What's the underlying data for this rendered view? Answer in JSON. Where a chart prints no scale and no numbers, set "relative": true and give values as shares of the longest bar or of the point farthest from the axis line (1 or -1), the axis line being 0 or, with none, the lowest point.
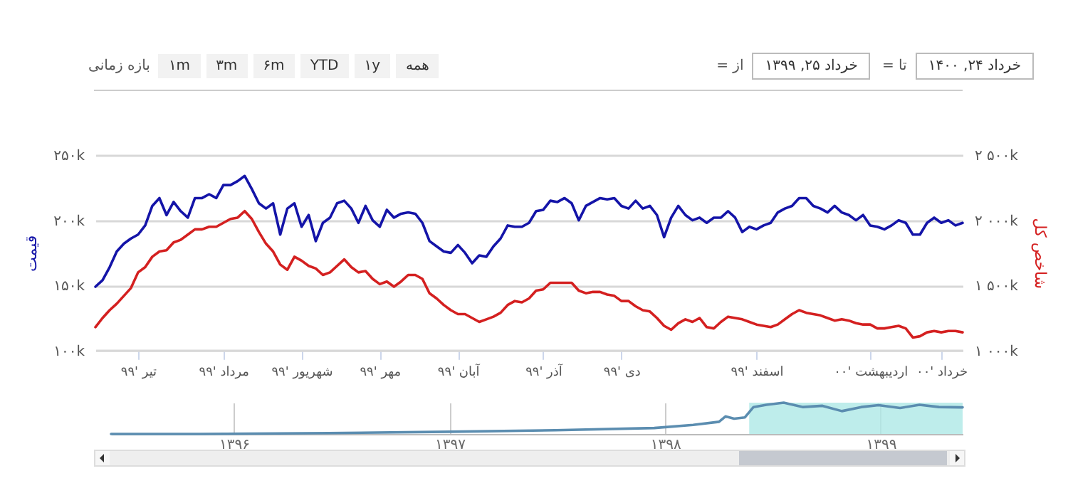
{
  "chart_data": [
    {
      "type": "line",
      "annotations": [
        "بازه زمانی",
        "۱m",
        "۳m",
        "۶m",
        "YTD",
        "۱y",
        "همه",
        "از =",
        "خرداد ۲۵, ۱۳۹۹",
        "تا =",
        "خرداد ۲۴, ۱۴۰۰"
      ],
      "ylabel": "قیمت",
      "y2label": "شاخص کل",
      "categories": [
        null,
        null,
        null,
        null,
        null,
        null,
        "تیر '۹۹",
        null,
        null,
        null,
        null,
        null,
        null,
        null,
        null,
        null,
        null,
        null,
        "مرداد '۹۹",
        null,
        null,
        null,
        null,
        null,
        null,
        null,
        null,
        null,
        null,
        "شهریور '۹۹",
        null,
        null,
        null,
        null,
        null,
        null,
        null,
        null,
        null,
        null,
        "مهر '۹۹",
        null,
        null,
        null,
        null,
        null,
        null,
        null,
        null,
        null,
        null,
        "آبان '۹۹",
        null,
        null,
        null,
        null,
        null,
        null,
        null,
        null,
        null,
        null,
        null,
        "آذر '۹۹",
        null,
        null,
        null,
        null,
        null,
        null,
        null,
        null,
        null,
        null,
        "دی '۹۹",
        null,
        null,
        null,
        null,
        null,
        null,
        null,
        null,
        null,
        null,
        null,
        null,
        null,
        null,
        null,
        null,
        null,
        null,
        "اسفند '۹۹",
        null,
        null,
        null,
        null,
        null,
        null,
        null,
        null,
        null,
        null,
        null,
        null,
        null,
        null,
        null,
        "اردیبهشت '۰۰",
        null,
        null,
        null,
        null,
        null,
        null,
        null,
        null,
        null,
        "خرداد '۰۰",
        null,
        null,
        null
      ],
      "ylim": [
        100,
        250
      ],
      "yticks": [
        {
          "value": 100,
          "label": "۱۰۰k"
        },
        {
          "value": 150,
          "label": "۱۵۰k"
        },
        {
          "value": 200,
          "label": "۲۰۰k"
        },
        {
          "value": 250,
          "label": "۲۵۰k"
        }
      ],
      "y2lim": [
        1000,
        2500
      ],
      "y2ticks": [
        {
          "value": 1000,
          "label": "۱ ۰۰۰k"
        },
        {
          "value": 1500,
          "label": "۱ ۵۰۰k"
        },
        {
          "value": 2000,
          "label": "۲ ۰۰۰k"
        },
        {
          "value": 2500,
          "label": "۲ ۵۰۰k"
        }
      ],
      "grid": "y",
      "series": [
        {
          "color": "#1414a8",
          "values": [
            149,
            154,
            164,
            176,
            182,
            186,
            189,
            196,
            211,
            217,
            204,
            214,
            207,
            202,
            217,
            217,
            220,
            217,
            227,
            227,
            230,
            234,
            224,
            213,
            209,
            213,
            189,
            209,
            213,
            195,
            204,
            184,
            198,
            202,
            213,
            215,
            209,
            198,
            211,
            200,
            195,
            208,
            202,
            205,
            206,
            205,
            198,
            184,
            180,
            176,
            175,
            181,
            175,
            167,
            173,
            172,
            180,
            186,
            196,
            195,
            195,
            198,
            207,
            208,
            215,
            214,
            217,
            213,
            200,
            211,
            214,
            217,
            216,
            217,
            211,
            209,
            215,
            209,
            211,
            204,
            187,
            202,
            211,
            204,
            200,
            202,
            198,
            202,
            202,
            207,
            202,
            191,
            195,
            193,
            196,
            198,
            206,
            209,
            211,
            217,
            217,
            211,
            209,
            206,
            211,
            206,
            204,
            200,
            204,
            196,
            195,
            193,
            196,
            200,
            198,
            189,
            189,
            198,
            202,
            198,
            200,
            196,
            198
          ]
        },
        {
          "color": "#d42020",
          "axis": "y2",
          "values": [
            1180,
            1250,
            1310,
            1360,
            1420,
            1480,
            1600,
            1640,
            1720,
            1760,
            1770,
            1830,
            1850,
            1890,
            1930,
            1930,
            1950,
            1950,
            1980,
            2010,
            2020,
            2070,
            2010,
            1910,
            1820,
            1760,
            1660,
            1620,
            1720,
            1690,
            1650,
            1630,
            1580,
            1600,
            1650,
            1700,
            1640,
            1600,
            1610,
            1550,
            1510,
            1530,
            1490,
            1530,
            1580,
            1580,
            1550,
            1440,
            1400,
            1350,
            1310,
            1280,
            1280,
            1250,
            1220,
            1240,
            1260,
            1290,
            1350,
            1380,
            1370,
            1400,
            1460,
            1470,
            1520,
            1520,
            1520,
            1520,
            1460,
            1440,
            1450,
            1450,
            1430,
            1420,
            1380,
            1380,
            1340,
            1310,
            1300,
            1250,
            1190,
            1160,
            1210,
            1240,
            1220,
            1250,
            1180,
            1170,
            1220,
            1260,
            1250,
            1240,
            1220,
            1200,
            1190,
            1180,
            1200,
            1240,
            1280,
            1310,
            1290,
            1280,
            1270,
            1250,
            1230,
            1240,
            1230,
            1210,
            1200,
            1200,
            1170,
            1170,
            1180,
            1190,
            1170,
            1100,
            1110,
            1140,
            1150,
            1140,
            1150,
            1150,
            1140
          ]
        }
      ]
    },
    {
      "type": "line",
      "relative": true,
      "x": [
        1395.43,
        1395.84,
        1396.44,
        1397.0,
        1397.49,
        1397.95,
        1398.13,
        1398.25,
        1398.28,
        1398.32,
        1398.37,
        1398.41,
        1398.47,
        1398.55,
        1398.64,
        1398.73,
        1398.82,
        1398.91,
        1398.99,
        1399.09,
        1399.18,
        1399.27,
        1399.38
      ],
      "xlim": [
        1395.43,
        1399.38
      ],
      "xticks": [
        {
          "value": 1396,
          "label": "۱۳۹۶"
        },
        {
          "value": 1397,
          "label": "۱۳۹۷"
        },
        {
          "value": 1398,
          "label": "۱۳۹۸"
        },
        {
          "value": 1399,
          "label": "۱۳۹۹"
        }
      ],
      "grid": "x",
      "bands": [
        {
          "axis": "x",
          "from": 1398.39,
          "to": 1399.38,
          "color": "#aee9e6"
        }
      ],
      "series": [
        {
          "color": "#5b8db0",
          "values": [
            0,
            0,
            0.03,
            0.07,
            0.12,
            0.19,
            0.29,
            0.39,
            0.56,
            0.49,
            0.53,
            0.86,
            0.93,
            1,
            0.86,
            0.9,
            0.73,
            0.86,
            0.92,
            0.83,
            0.93,
            0.86,
            0.85
          ]
        }
      ]
    }
  ]
}
